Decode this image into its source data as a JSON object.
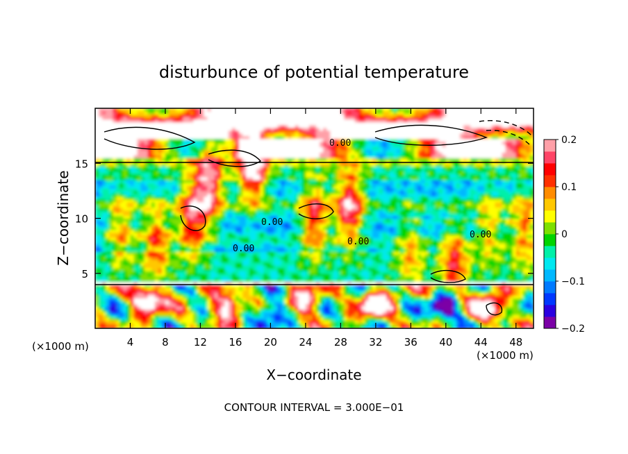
{
  "chart_data": {
    "type": "heatmap",
    "title": "disturbunce of potential temperature",
    "xlabel": "X−coordinate",
    "ylabel": "Z−coordinate",
    "x_unit": "(×1000 m)",
    "y_unit": "(×1000 m)",
    "xlim": [
      0,
      50
    ],
    "ylim": [
      0,
      20
    ],
    "x_ticks": [
      4,
      8,
      12,
      16,
      20,
      24,
      28,
      32,
      36,
      40,
      44,
      48
    ],
    "y_ticks": [
      5,
      10,
      15
    ],
    "colorbar": {
      "range": [
        -0.2,
        0.2
      ],
      "tick_values": [
        0.2,
        0.1,
        0,
        -0.1,
        -0.2
      ],
      "tick_labels": [
        "0.2",
        "0.1",
        "0",
        "−0.1",
        "−0.2"
      ],
      "colors": [
        "#7b00a6",
        "#2a00e0",
        "#0038ff",
        "#007aff",
        "#00b8ff",
        "#00e8f0",
        "#00f0a8",
        "#00d400",
        "#7ee000",
        "#ffff00",
        "#ffc800",
        "#ff8c00",
        "#ff3000",
        "#ff0000",
        "#ff4466",
        "#ffa0a8"
      ]
    },
    "contour_labels": [
      "0.00",
      "0.00",
      "0.00",
      "0.00",
      "0.00"
    ],
    "footnote": "CONTOUR INTERVAL = 3.000E−01",
    "field_description": "Layered potential temperature disturbance, values roughly between −0.2 and 0.2; warm (white/red) anomalies near the top around z≈16–19 and bottom below z≈4, cold bands (blue) between z≈7 and z≈15."
  }
}
